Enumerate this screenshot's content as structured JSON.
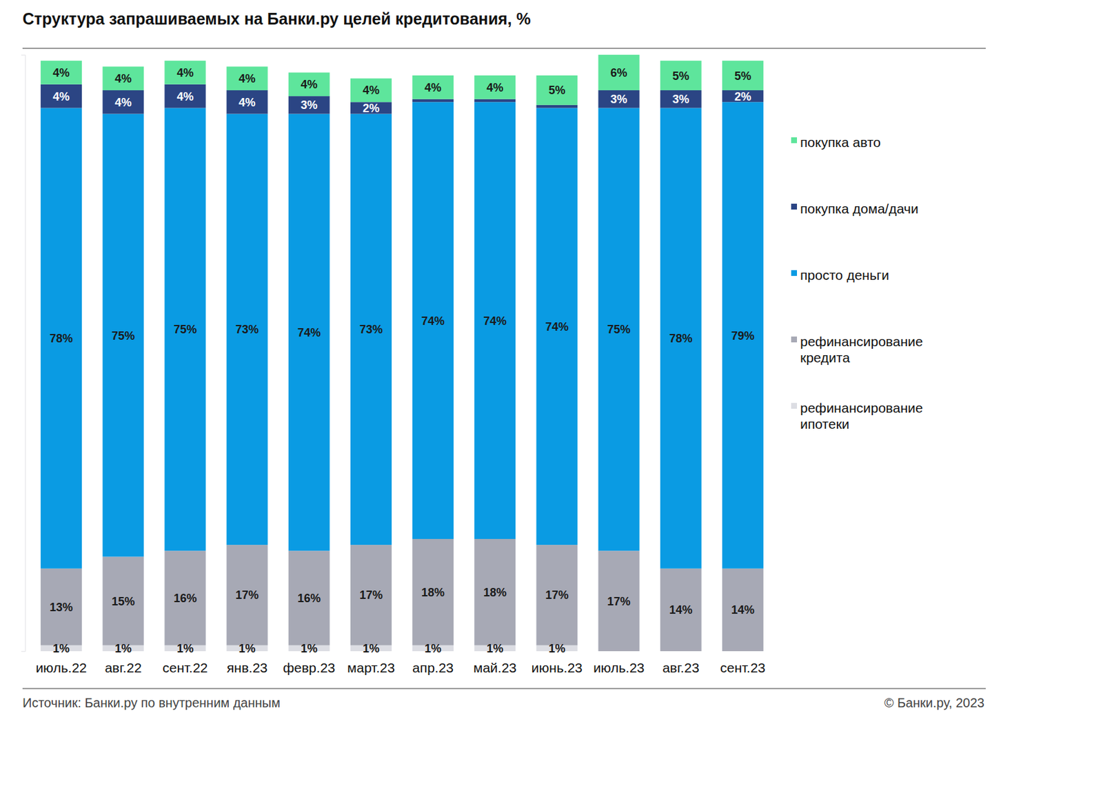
{
  "chart_data": {
    "type": "bar",
    "stacked": true,
    "data_labels": true,
    "tick_labels": "x",
    "legend": "right",
    "title": "Структура запрашиваемых на Банки.ру целей кредитования, %",
    "source": "Источник: Банки.ру по внутренним данным",
    "credit": "© Банки.ру, 2023",
    "categories": [
      "июль.22",
      "авг.22",
      "сент.22",
      "янв.23",
      "февр.23",
      "март.23",
      "апр.23",
      "май.23",
      "июнь.23",
      "июль.23",
      "авг.23",
      "сент.23"
    ],
    "ylim": [
      0,
      101
    ],
    "yticks": [],
    "series": [
      {
        "name": "рефинансирование ипотеки",
        "color": "#dcdde3",
        "values": [
          1,
          1,
          1,
          1,
          1,
          1,
          1,
          1,
          1,
          null,
          null,
          null
        ],
        "value_labels": [
          "1%",
          "1%",
          "1%",
          "1%",
          "1%",
          "1%",
          "1%",
          "1%",
          "1%",
          null,
          null,
          null
        ]
      },
      {
        "name": "рефинансирование кредита",
        "color": "#a7a9b5",
        "values": [
          13,
          15,
          16,
          17,
          16,
          17,
          18,
          18,
          17,
          17,
          14,
          14
        ],
        "value_labels": [
          "13%",
          "15%",
          "16%",
          "17%",
          "16%",
          "17%",
          "18%",
          "18%",
          "17%",
          "17%",
          "14%",
          "14%"
        ]
      },
      {
        "name": "просто деньги",
        "color": "#0a9be3",
        "values": [
          78,
          75,
          75,
          73,
          74,
          73,
          74,
          74,
          74,
          75,
          78,
          79
        ],
        "value_labels": [
          "78%",
          "75%",
          "75%",
          "73%",
          "74%",
          "73%",
          "74%",
          "74%",
          "74%",
          "75%",
          "78%",
          "79%"
        ]
      },
      {
        "name": "покупка дома/дачи",
        "color": "#2b4584",
        "values": [
          4,
          4,
          4,
          4,
          3,
          2,
          0.5,
          0.5,
          0.5,
          3,
          3,
          2
        ],
        "value_labels": [
          "4%",
          "4%",
          "4%",
          "4%",
          "3%",
          "2%",
          null,
          null,
          null,
          "3%",
          "3%",
          "2%"
        ]
      },
      {
        "name": "покупка авто",
        "color": "#5ee59c",
        "values": [
          4,
          4,
          4,
          4,
          4,
          4,
          4,
          4,
          5,
          6,
          5,
          5
        ],
        "value_labels": [
          "4%",
          "4%",
          "4%",
          "4%",
          "4%",
          "4%",
          "4%",
          "4%",
          "5%",
          "6%",
          "5%",
          "5%"
        ]
      }
    ]
  }
}
